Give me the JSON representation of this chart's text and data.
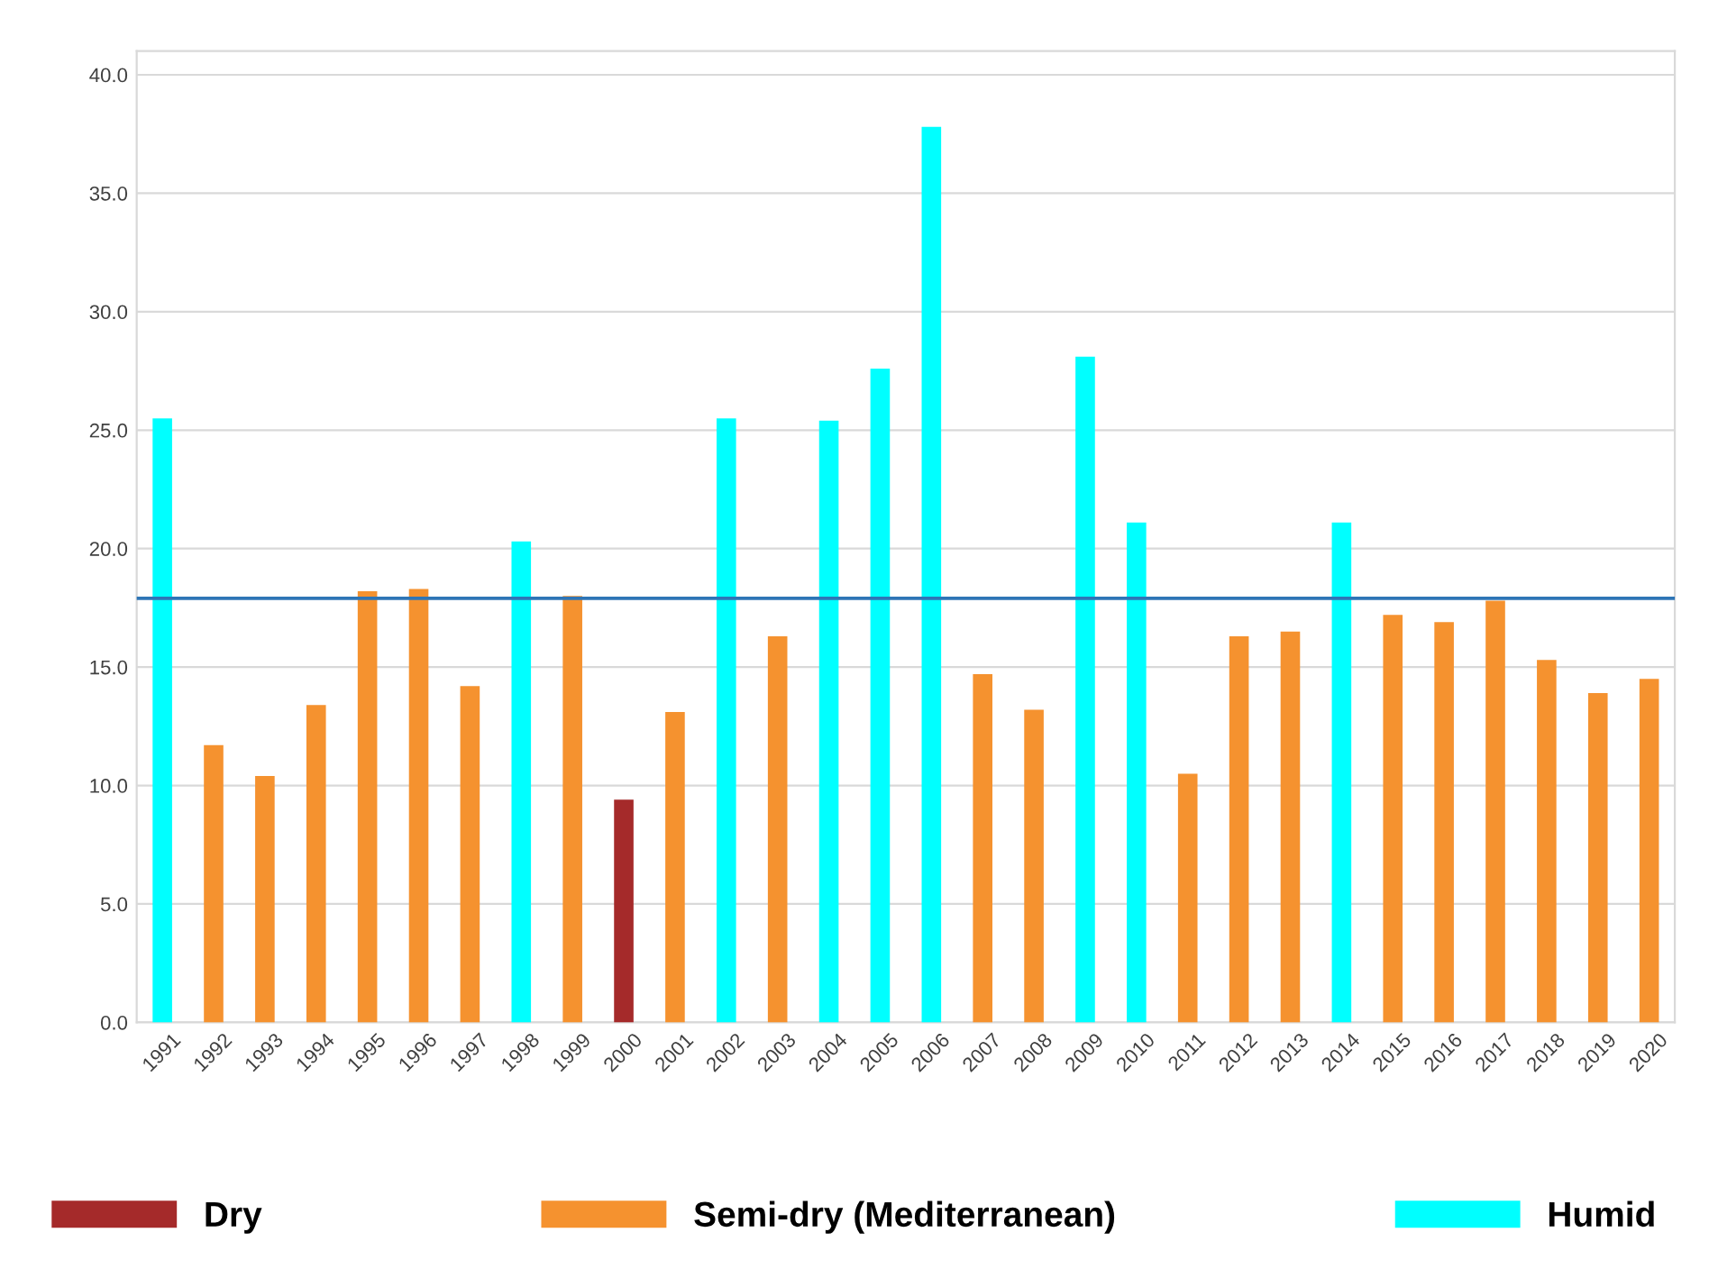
{
  "chart_data": {
    "type": "bar",
    "categories": [
      "1991",
      "1992",
      "1993",
      "1994",
      "1995",
      "1996",
      "1997",
      "1998",
      "1999",
      "2000",
      "2001",
      "2002",
      "2003",
      "2004",
      "2005",
      "2006",
      "2007",
      "2008",
      "2009",
      "2010",
      "2011",
      "2012",
      "2013",
      "2014",
      "2015",
      "2016",
      "2017",
      "2018",
      "2019",
      "2020"
    ],
    "series": [
      {
        "name": "Dry",
        "color": "#a52a2a",
        "values": [
          null,
          null,
          null,
          null,
          null,
          null,
          null,
          null,
          null,
          9.4,
          null,
          null,
          null,
          null,
          null,
          null,
          null,
          null,
          null,
          null,
          null,
          null,
          null,
          null,
          null,
          null,
          null,
          null,
          null,
          null
        ]
      },
      {
        "name": "Semi-dry (Mediterranean)",
        "color": "#f5922f",
        "values": [
          null,
          11.7,
          10.4,
          13.4,
          18.2,
          18.3,
          14.2,
          null,
          18.0,
          null,
          13.1,
          null,
          16.3,
          null,
          null,
          null,
          14.7,
          13.2,
          null,
          null,
          10.5,
          16.3,
          16.5,
          null,
          17.2,
          16.9,
          17.8,
          15.3,
          13.9,
          14.5
        ]
      },
      {
        "name": "Humid",
        "color": "#00ffff",
        "values": [
          25.5,
          null,
          null,
          null,
          null,
          null,
          null,
          20.3,
          null,
          null,
          null,
          25.5,
          null,
          25.4,
          27.6,
          37.8,
          null,
          null,
          28.1,
          21.1,
          null,
          null,
          null,
          21.1,
          null,
          null,
          null,
          null,
          null,
          null
        ]
      }
    ],
    "stacked": true,
    "ylim": [
      0,
      41
    ],
    "yticks": [
      {
        "value": 0,
        "label": "0.0"
      },
      {
        "value": 5,
        "label": "5.0"
      },
      {
        "value": 10,
        "label": "10.0"
      },
      {
        "value": 15,
        "label": "15.0"
      },
      {
        "value": 20,
        "label": "20.0"
      },
      {
        "value": 25,
        "label": "25.0"
      },
      {
        "value": 30,
        "label": "30.0"
      },
      {
        "value": 35,
        "label": "35.0"
      },
      {
        "value": 40,
        "label": "40.0"
      }
    ],
    "ref_lines": [
      {
        "axis": "y",
        "value": 17.9,
        "label": null,
        "color": "#2e75b6"
      }
    ],
    "grid": "y",
    "legend": "bottom"
  }
}
